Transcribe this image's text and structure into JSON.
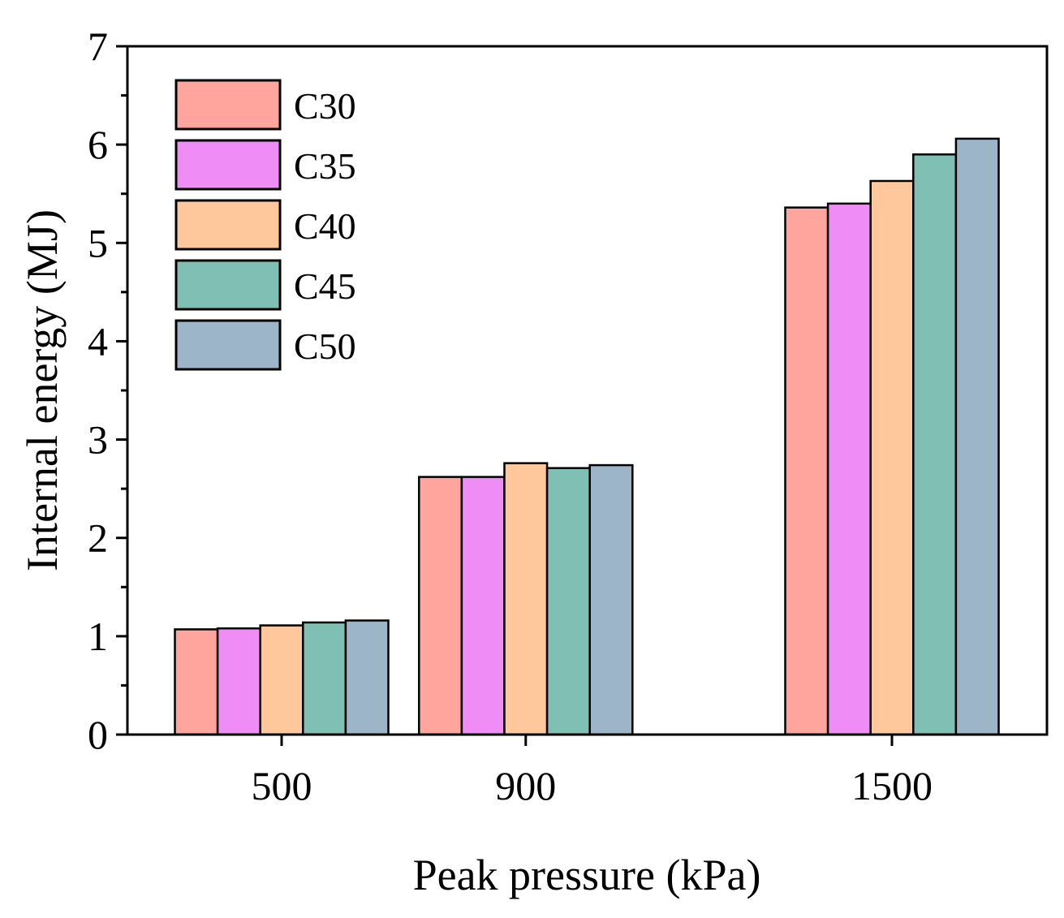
{
  "chart_data": {
    "type": "bar",
    "title": "",
    "xlabel": "Peak pressure (kPa)",
    "ylabel": "Internal energy (MJ)",
    "ylim": [
      0,
      7
    ],
    "yticks": [
      "0",
      "1",
      "2",
      "3",
      "4",
      "5",
      "6",
      "7"
    ],
    "x_positions": [
      500,
      900,
      1500
    ],
    "categories": [
      "500",
      "900",
      "1500"
    ],
    "series": [
      {
        "name": "C30",
        "color": "#FFA59E",
        "values": [
          1.07,
          2.62,
          5.36
        ]
      },
      {
        "name": "C35",
        "color": "#F08CF5",
        "values": [
          1.08,
          2.62,
          5.4
        ]
      },
      {
        "name": "C40",
        "color": "#FFC89C",
        "values": [
          1.11,
          2.76,
          5.63
        ]
      },
      {
        "name": "C45",
        "color": "#80BFB3",
        "values": [
          1.14,
          2.71,
          5.9
        ]
      },
      {
        "name": "C50",
        "color": "#9DB5C8",
        "values": [
          1.16,
          2.74,
          6.06
        ]
      }
    ],
    "legend_position": "top-left",
    "grid": false
  }
}
